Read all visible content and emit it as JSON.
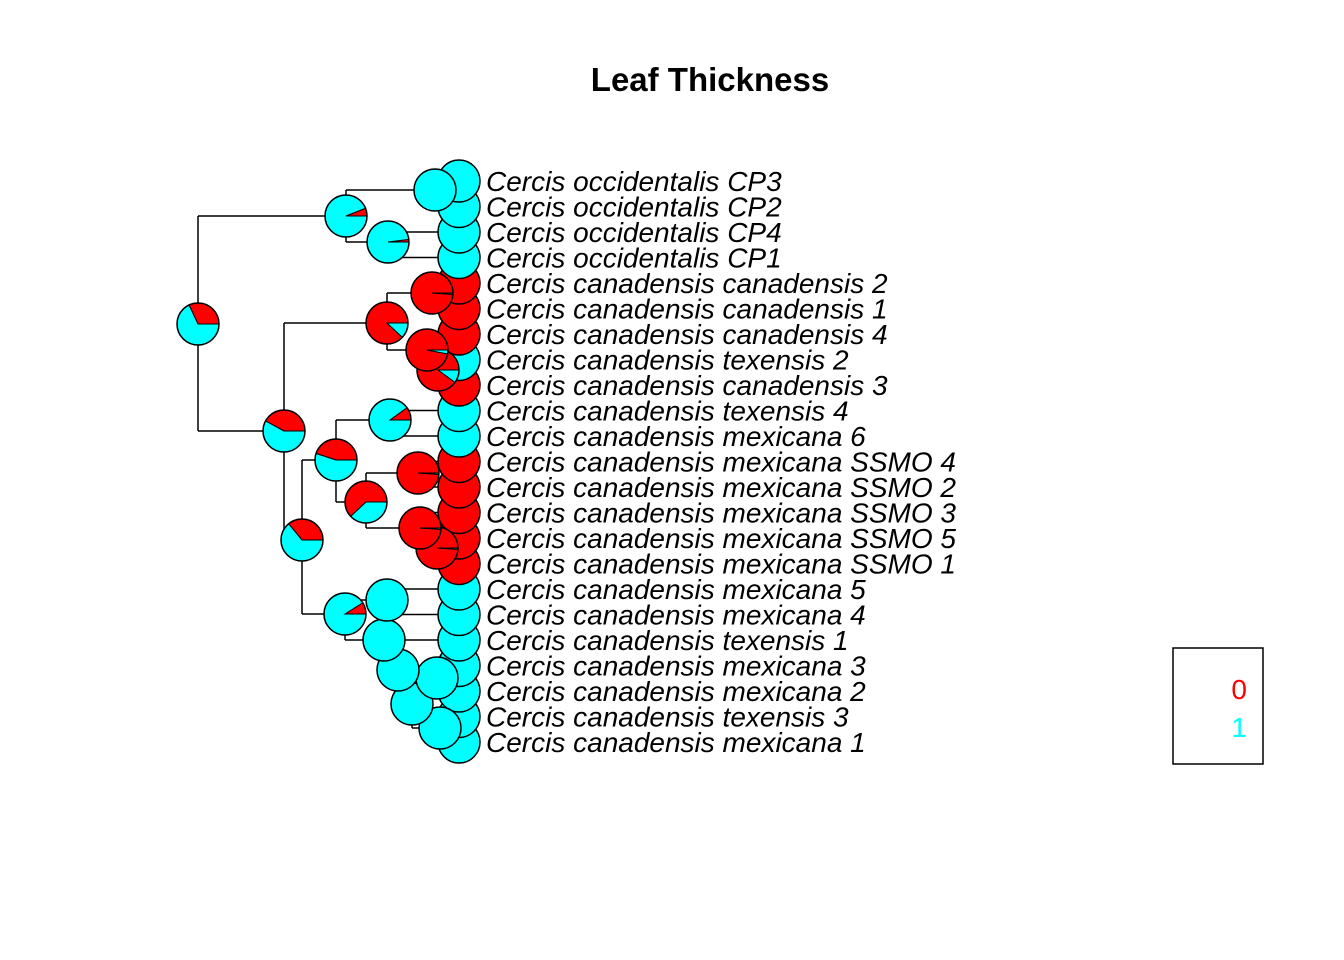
{
  "title": "Leaf Thickness",
  "colors": {
    "state_0": "#FF0000",
    "state_1": "#00FFFF"
  },
  "legend": [
    {
      "label": "0",
      "color": "#FF0000"
    },
    {
      "label": "1",
      "color": "#00FFFF"
    }
  ],
  "tips": [
    {
      "label": "Cercis occidentalis CP3",
      "p_state_0": 0
    },
    {
      "label": "Cercis occidentalis CP2",
      "p_state_0": 0
    },
    {
      "label": "Cercis occidentalis CP4",
      "p_state_0": 0
    },
    {
      "label": "Cercis occidentalis CP1",
      "p_state_0": 0
    },
    {
      "label": "Cercis canadensis canadensis 2",
      "p_state_0": 1
    },
    {
      "label": "Cercis canadensis canadensis 1",
      "p_state_0": 1
    },
    {
      "label": "Cercis canadensis canadensis 4",
      "p_state_0": 1
    },
    {
      "label": "Cercis canadensis texensis 2",
      "p_state_0": 0
    },
    {
      "label": "Cercis canadensis canadensis 3",
      "p_state_0": 1
    },
    {
      "label": "Cercis canadensis texensis 4",
      "p_state_0": 0
    },
    {
      "label": "Cercis canadensis mexicana 6",
      "p_state_0": 0
    },
    {
      "label": "Cercis canadensis mexicana SSMO 4",
      "p_state_0": 1
    },
    {
      "label": "Cercis canadensis mexicana SSMO 2",
      "p_state_0": 1
    },
    {
      "label": "Cercis canadensis mexicana SSMO 3",
      "p_state_0": 1
    },
    {
      "label": "Cercis canadensis mexicana SSMO 5",
      "p_state_0": 1
    },
    {
      "label": "Cercis canadensis mexicana SSMO 1",
      "p_state_0": 1
    },
    {
      "label": "Cercis canadensis mexicana 5",
      "p_state_0": 0
    },
    {
      "label": "Cercis canadensis mexicana 4",
      "p_state_0": 0
    },
    {
      "label": "Cercis canadensis texensis 1",
      "p_state_0": 0
    },
    {
      "label": "Cercis canadensis mexicana 3",
      "p_state_0": 0
    },
    {
      "label": "Cercis canadensis mexicana 2",
      "p_state_0": 0
    },
    {
      "label": "Cercis canadensis texensis 3",
      "p_state_0": 0
    },
    {
      "label": "Cercis canadensis mexicana 1",
      "p_state_0": 0
    }
  ],
  "internal_nodes": [
    {
      "id": "root",
      "p_state_0": 0.32
    },
    {
      "id": "occidentalis-clade",
      "p_state_0": 0.06
    },
    {
      "id": "occ-cp3-cp2",
      "p_state_0": 0.0
    },
    {
      "id": "occ-cp4-cp1",
      "p_state_0": 0.02
    },
    {
      "id": "canadensis-clade",
      "p_state_0": 0.42
    },
    {
      "id": "can-sub",
      "p_state_0": 0.88
    },
    {
      "id": "can-2-1",
      "p_state_0": 0.99
    },
    {
      "id": "can-4-tex2-3",
      "p_state_0": 0.97
    },
    {
      "id": "tex2-can3",
      "p_state_0": 0.9
    },
    {
      "id": "mex-clade",
      "p_state_0": 0.36
    },
    {
      "id": "tex4-ssmo",
      "p_state_0": 0.45
    },
    {
      "id": "tex4-mex6",
      "p_state_0": 0.1
    },
    {
      "id": "ssmo-clade",
      "p_state_0": 0.62
    },
    {
      "id": "ssmo-4-2",
      "p_state_0": 0.99
    },
    {
      "id": "ssmo-3-5-1",
      "p_state_0": 0.99
    },
    {
      "id": "ssmo-5-1",
      "p_state_0": 0.99
    },
    {
      "id": "mex-lower",
      "p_state_0": 0.09
    },
    {
      "id": "mex5-4",
      "p_state_0": 0.0
    },
    {
      "id": "tex1-group",
      "p_state_0": 0.0
    },
    {
      "id": "mex3-group",
      "p_state_0": 0.0
    },
    {
      "id": "mex3-2",
      "p_state_0": 0.0
    },
    {
      "id": "tex3-mex1-group",
      "p_state_0": 0.0
    },
    {
      "id": "tex3-mex1",
      "p_state_0": 0.0
    }
  ]
}
